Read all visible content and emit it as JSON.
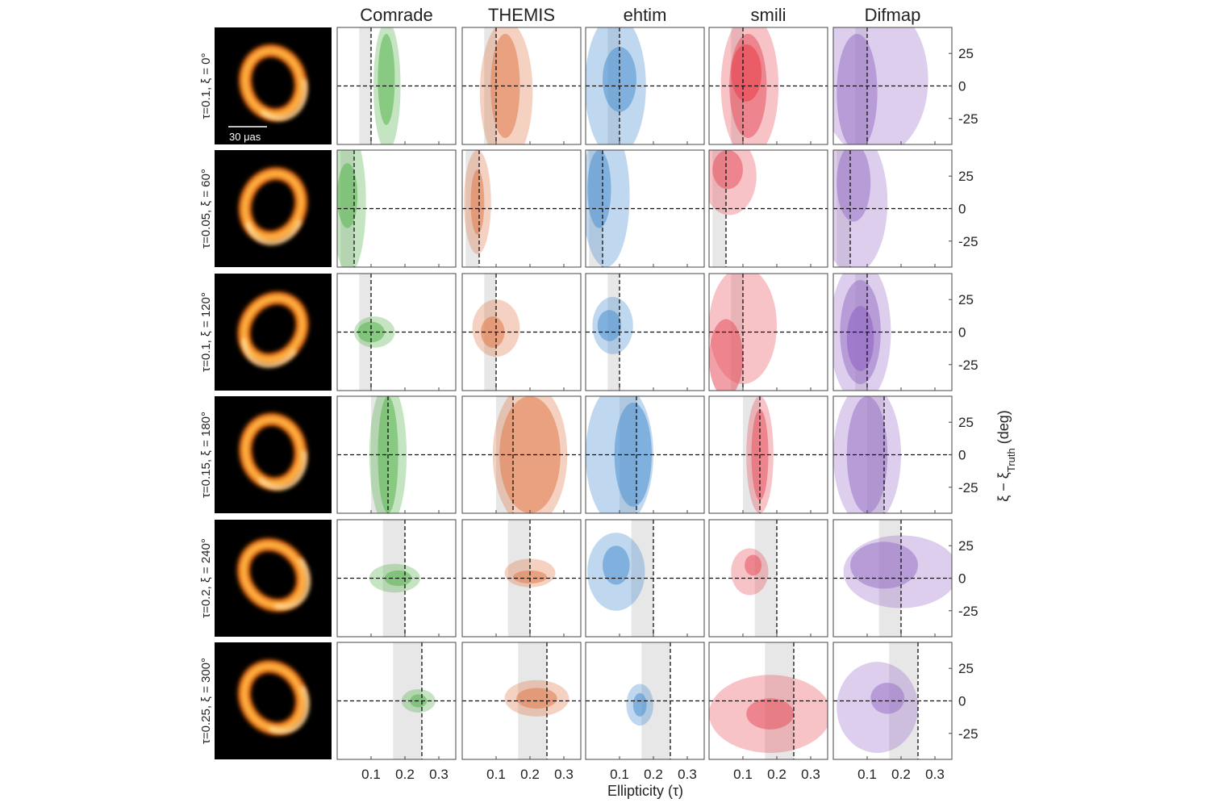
{
  "chart_data": {
    "type": "contour-grid",
    "columns": [
      "Comrade",
      "THEMIS",
      "ehtim",
      "smili",
      "Difmap"
    ],
    "colors": [
      "#58b44f",
      "#e07a4a",
      "#4a8fd0",
      "#e8525e",
      "#9a72c8"
    ],
    "xlabel": "Ellipticity (τ)",
    "ylabel": "ξ − ξ",
    "ylabel_sub": "Truth",
    "ylabel_unit": "(deg)",
    "scalebar_label": "30 μas",
    "xlim": [
      0,
      0.35
    ],
    "ylim": [
      -45,
      45
    ],
    "xticks": [
      0.1,
      0.2,
      0.3
    ],
    "yticks": [
      25,
      0,
      -25
    ],
    "truth_xi_offset": 0,
    "rows": [
      {
        "label": "τ=0.1, ξ = 0°",
        "truth_tau": 0.1,
        "band": [
          0.065,
          0.1
        ]
      },
      {
        "label": "τ=0.05, ξ = 60°",
        "truth_tau": 0.05,
        "band": [
          0.01,
          0.05
        ]
      },
      {
        "label": "τ=0.1, ξ = 120°",
        "truth_tau": 0.1,
        "band": [
          0.065,
          0.1
        ]
      },
      {
        "label": "τ=0.15, ξ = 180°",
        "truth_tau": 0.15,
        "band": [
          0.1,
          0.15
        ]
      },
      {
        "label": "τ=0.2, ξ = 240°",
        "truth_tau": 0.2,
        "band": [
          0.135,
          0.2
        ]
      },
      {
        "label": "τ=0.25, ξ = 300°",
        "truth_tau": 0.25,
        "band": [
          0.165,
          0.25
        ]
      }
    ],
    "panels": [
      [
        [
          {
            "cx": 0.147,
            "cy": 0,
            "rx": 0.04,
            "ry": 50
          },
          {
            "cx": 0.145,
            "cy": 5,
            "rx": 0.025,
            "ry": 35
          }
        ],
        [
          {
            "cx": 0.13,
            "cy": -5,
            "rx": 0.078,
            "ry": 55
          },
          {
            "cx": 0.127,
            "cy": 0,
            "rx": 0.043,
            "ry": 40
          }
        ],
        [
          {
            "cx": 0.088,
            "cy": 0,
            "rx": 0.09,
            "ry": 55
          },
          {
            "cx": 0.1,
            "cy": 5,
            "rx": 0.05,
            "ry": 25
          }
        ],
        [
          {
            "cx": 0.12,
            "cy": 0,
            "rx": 0.085,
            "ry": 55
          },
          {
            "cx": 0.115,
            "cy": 0,
            "rx": 0.055,
            "ry": 40
          },
          {
            "cx": 0.11,
            "cy": 10,
            "rx": 0.045,
            "ry": 22
          }
        ],
        [
          {
            "cx": 0.12,
            "cy": 5,
            "rx": 0.16,
            "ry": 60
          },
          {
            "cx": 0.07,
            "cy": -5,
            "rx": 0.06,
            "ry": 45
          }
        ]
      ],
      [
        [
          {
            "cx": 0.035,
            "cy": 5,
            "rx": 0.05,
            "ry": 55
          },
          {
            "cx": 0.03,
            "cy": 10,
            "rx": 0.03,
            "ry": 25
          }
        ],
        [
          {
            "cx": 0.045,
            "cy": 5,
            "rx": 0.04,
            "ry": 40
          },
          {
            "cx": 0.045,
            "cy": 5,
            "rx": 0.02,
            "ry": 25
          }
        ],
        [
          {
            "cx": 0.06,
            "cy": 10,
            "rx": 0.07,
            "ry": 55
          },
          {
            "cx": 0.04,
            "cy": 15,
            "rx": 0.035,
            "ry": 30
          }
        ],
        [
          {
            "cx": 0.06,
            "cy": 25,
            "rx": 0.08,
            "ry": 30
          },
          {
            "cx": 0.055,
            "cy": 30,
            "rx": 0.045,
            "ry": 15
          }
        ],
        [
          {
            "cx": 0.06,
            "cy": 5,
            "rx": 0.1,
            "ry": 55
          },
          {
            "cx": 0.06,
            "cy": 20,
            "rx": 0.05,
            "ry": 30
          }
        ]
      ],
      [
        [
          {
            "cx": 0.11,
            "cy": 0,
            "rx": 0.06,
            "ry": 12
          },
          {
            "cx": 0.1,
            "cy": 0,
            "rx": 0.04,
            "ry": 8
          }
        ],
        [
          {
            "cx": 0.1,
            "cy": 3,
            "rx": 0.07,
            "ry": 22
          },
          {
            "cx": 0.09,
            "cy": 0,
            "rx": 0.035,
            "ry": 12
          }
        ],
        [
          {
            "cx": 0.08,
            "cy": 5,
            "rx": 0.06,
            "ry": 22
          },
          {
            "cx": 0.07,
            "cy": 5,
            "rx": 0.035,
            "ry": 12
          }
        ],
        [
          {
            "cx": 0.1,
            "cy": 5,
            "rx": 0.1,
            "ry": 45
          },
          {
            "cx": 0.05,
            "cy": -20,
            "rx": 0.05,
            "ry": 30
          }
        ],
        [
          {
            "cx": 0.08,
            "cy": 0,
            "rx": 0.09,
            "ry": 55
          },
          {
            "cx": 0.08,
            "cy": 0,
            "rx": 0.06,
            "ry": 40
          },
          {
            "cx": 0.08,
            "cy": -5,
            "rx": 0.04,
            "ry": 25
          }
        ]
      ],
      [
        [
          {
            "cx": 0.15,
            "cy": 0,
            "rx": 0.055,
            "ry": 55
          },
          {
            "cx": 0.15,
            "cy": 0,
            "rx": 0.03,
            "ry": 45
          }
        ],
        [
          {
            "cx": 0.2,
            "cy": 0,
            "rx": 0.11,
            "ry": 55
          },
          {
            "cx": 0.2,
            "cy": 0,
            "rx": 0.09,
            "ry": 45
          }
        ],
        [
          {
            "cx": 0.1,
            "cy": 0,
            "rx": 0.1,
            "ry": 55
          },
          {
            "cx": 0.14,
            "cy": 0,
            "rx": 0.055,
            "ry": 40
          }
        ],
        [
          {
            "cx": 0.15,
            "cy": 0,
            "rx": 0.04,
            "ry": 45
          },
          {
            "cx": 0.15,
            "cy": 0,
            "rx": 0.025,
            "ry": 35
          }
        ],
        [
          {
            "cx": 0.1,
            "cy": 0,
            "rx": 0.1,
            "ry": 55
          },
          {
            "cx": 0.1,
            "cy": 0,
            "rx": 0.06,
            "ry": 45
          }
        ]
      ],
      [
        [
          {
            "cx": 0.17,
            "cy": 0,
            "rx": 0.075,
            "ry": 11
          },
          {
            "cx": 0.18,
            "cy": 0,
            "rx": 0.04,
            "ry": 6
          }
        ],
        [
          {
            "cx": 0.2,
            "cy": 4,
            "rx": 0.075,
            "ry": 11
          },
          {
            "cx": 0.2,
            "cy": 1,
            "rx": 0.05,
            "ry": 5
          }
        ],
        [
          {
            "cx": 0.09,
            "cy": 5,
            "rx": 0.085,
            "ry": 30
          },
          {
            "cx": 0.09,
            "cy": 10,
            "rx": 0.04,
            "ry": 15
          }
        ],
        [
          {
            "cx": 0.12,
            "cy": 5,
            "rx": 0.055,
            "ry": 18
          },
          {
            "cx": 0.13,
            "cy": 10,
            "rx": 0.025,
            "ry": 8
          }
        ],
        [
          {
            "cx": 0.2,
            "cy": 5,
            "rx": 0.17,
            "ry": 28
          },
          {
            "cx": 0.15,
            "cy": 10,
            "rx": 0.1,
            "ry": 18
          }
        ]
      ],
      [
        [
          {
            "cx": 0.24,
            "cy": 0,
            "rx": 0.05,
            "ry": 9
          },
          {
            "cx": 0.24,
            "cy": 0,
            "rx": 0.025,
            "ry": 5
          }
        ],
        [
          {
            "cx": 0.22,
            "cy": 2,
            "rx": 0.095,
            "ry": 14
          },
          {
            "cx": 0.22,
            "cy": 2,
            "rx": 0.06,
            "ry": 8
          }
        ],
        [
          {
            "cx": 0.16,
            "cy": -3,
            "rx": 0.04,
            "ry": 16
          },
          {
            "cx": 0.16,
            "cy": -3,
            "rx": 0.02,
            "ry": 9
          }
        ],
        [
          {
            "cx": 0.18,
            "cy": -10,
            "rx": 0.18,
            "ry": 30
          },
          {
            "cx": 0.18,
            "cy": -10,
            "rx": 0.07,
            "ry": 12
          }
        ],
        [
          {
            "cx": 0.13,
            "cy": -5,
            "rx": 0.12,
            "ry": 35
          },
          {
            "cx": 0.16,
            "cy": 2,
            "rx": 0.05,
            "ry": 12
          }
        ]
      ]
    ]
  }
}
